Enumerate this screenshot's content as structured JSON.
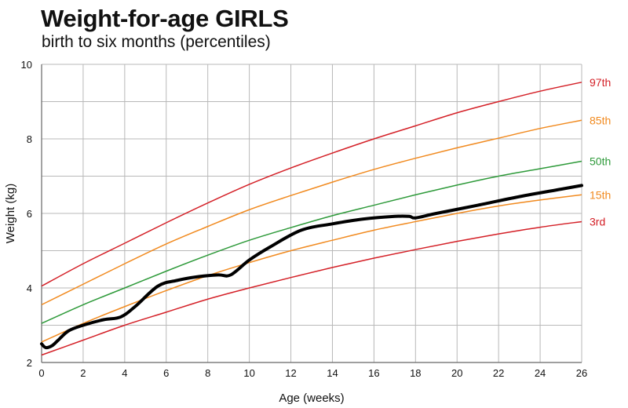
{
  "header": {
    "title": "Weight-for-age GIRLS",
    "subtitle": "birth to six months (percentiles)"
  },
  "chart_data": {
    "type": "line",
    "title": "Weight-for-age GIRLS",
    "subtitle": "birth to six months (percentiles)",
    "xlabel": "Age (weeks)",
    "ylabel": "Weight (kg)",
    "xlim": [
      0,
      26
    ],
    "ylim": [
      2,
      10
    ],
    "xticks": [
      0,
      2,
      4,
      6,
      8,
      10,
      12,
      14,
      16,
      18,
      20,
      22,
      24,
      26
    ],
    "yticks": [
      2,
      4,
      6,
      8,
      10
    ],
    "grid": true,
    "legend": "labels at right end of each curve",
    "x": [
      0,
      2,
      4,
      6,
      8,
      10,
      12,
      14,
      16,
      18,
      20,
      22,
      24,
      26
    ],
    "series": [
      {
        "name": "97th",
        "color": "#d42027",
        "values": [
          4.05,
          4.65,
          5.2,
          5.75,
          6.28,
          6.78,
          7.22,
          7.62,
          8.0,
          8.35,
          8.7,
          9.0,
          9.28,
          9.52
        ]
      },
      {
        "name": "85th",
        "color": "#f18a1f",
        "values": [
          3.55,
          4.1,
          4.65,
          5.18,
          5.65,
          6.1,
          6.48,
          6.84,
          7.18,
          7.48,
          7.76,
          8.02,
          8.28,
          8.5
        ]
      },
      {
        "name": "50th",
        "color": "#2e9a3a",
        "values": [
          3.05,
          3.55,
          4.0,
          4.45,
          4.88,
          5.28,
          5.62,
          5.94,
          6.22,
          6.5,
          6.76,
          7.0,
          7.2,
          7.4
        ]
      },
      {
        "name": "15th",
        "color": "#f18a1f",
        "values": [
          2.55,
          3.05,
          3.5,
          3.93,
          4.33,
          4.68,
          5.0,
          5.28,
          5.55,
          5.78,
          6.0,
          6.2,
          6.36,
          6.5
        ]
      },
      {
        "name": "3rd",
        "color": "#d42027",
        "values": [
          2.2,
          2.6,
          3.0,
          3.35,
          3.7,
          4.0,
          4.28,
          4.55,
          4.8,
          5.03,
          5.25,
          5.45,
          5.63,
          5.78
        ]
      }
    ],
    "child": {
      "color": "#000000",
      "x": [
        0,
        0.2,
        0.5,
        0.8,
        1.3,
        2.0,
        3.0,
        3.8,
        4.5,
        5.6,
        6.5,
        7.5,
        8.5,
        9.1,
        10.0,
        11.0,
        12.5,
        14.0,
        15.5,
        17.0,
        17.7,
        18.0,
        19.0,
        21.0,
        23.0,
        25.0,
        26.0
      ],
      "values": [
        2.5,
        2.4,
        2.45,
        2.6,
        2.85,
        3.0,
        3.15,
        3.22,
        3.5,
        4.05,
        4.2,
        4.3,
        4.35,
        4.35,
        4.75,
        5.1,
        5.55,
        5.72,
        5.85,
        5.92,
        5.92,
        5.88,
        6.0,
        6.22,
        6.45,
        6.65,
        6.75
      ]
    }
  }
}
